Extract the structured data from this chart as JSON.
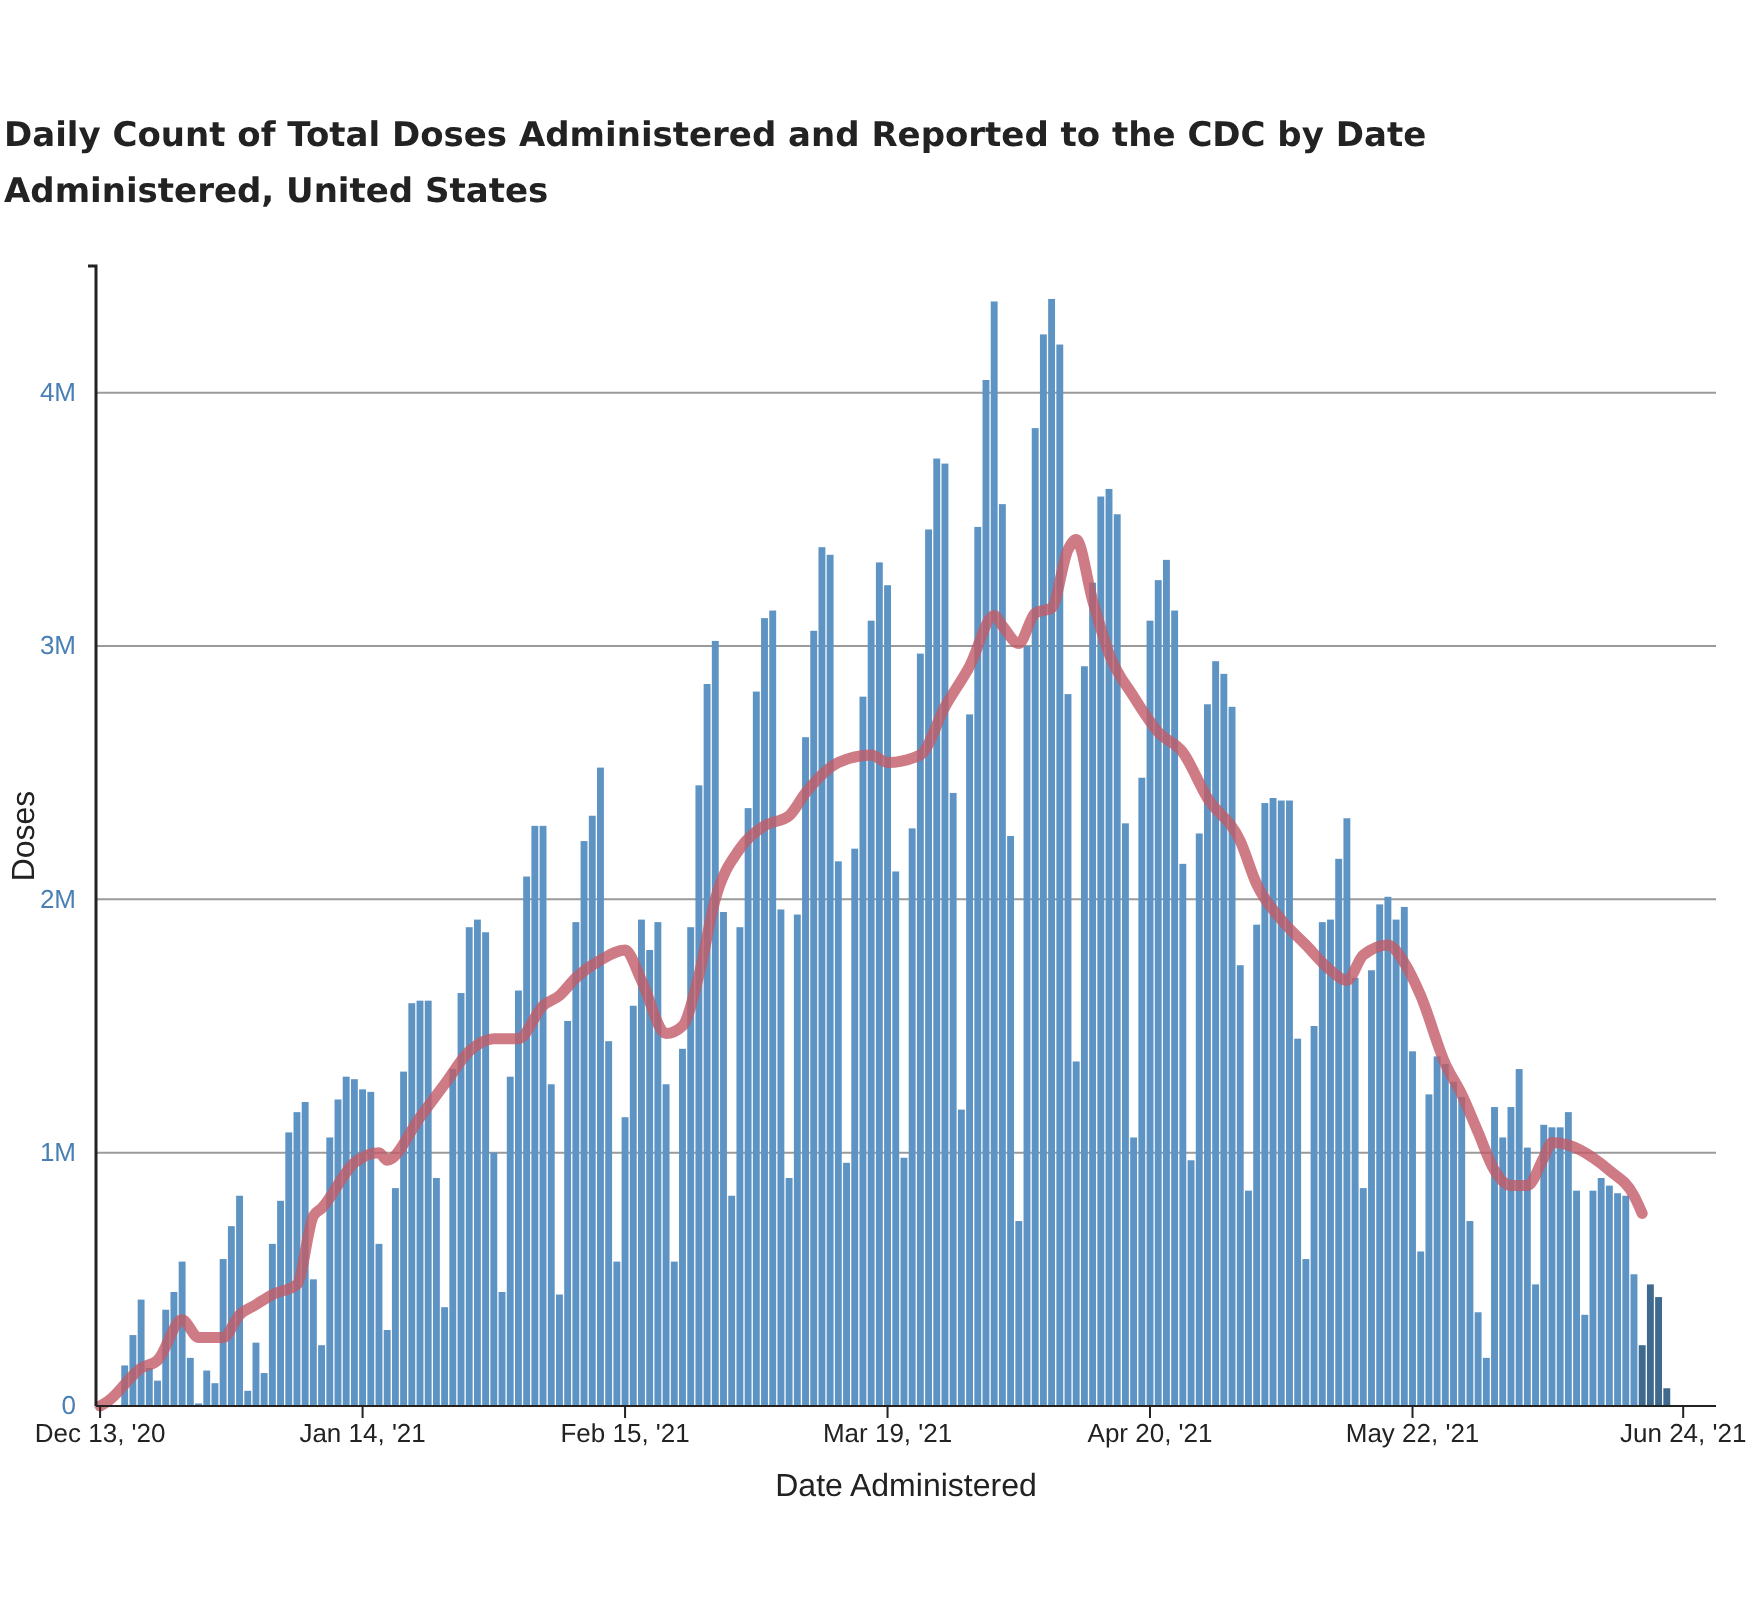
{
  "chart_data": {
    "type": "bar",
    "title": "Daily Count of Total Doses Administered and Reported to the CDC by Date Administered, United States",
    "xlabel": "Date Administered",
    "ylabel": "Doses",
    "grid": "y",
    "xlim": [
      "2020-12-12T12:00",
      "2021-06-28"
    ],
    "xticks": [
      {
        "value": "2020-12-13",
        "label": "Dec 13, '20"
      },
      {
        "value": "2021-01-14",
        "label": "Jan 14, '21"
      },
      {
        "value": "2021-02-15",
        "label": "Feb 15, '21"
      },
      {
        "value": "2021-03-19",
        "label": "Mar 19, '21"
      },
      {
        "value": "2021-04-20",
        "label": "Apr 20, '21"
      },
      {
        "value": "2021-05-22",
        "label": "May 22, '21"
      },
      {
        "value": "2021-06-24",
        "label": "Jun 24, '21"
      }
    ],
    "ylim": [
      0,
      4.5
    ],
    "yticks": [
      0,
      {
        "value": 1,
        "label": "1M"
      },
      {
        "value": 2,
        "label": "2M"
      },
      {
        "value": 3,
        "label": "3M"
      },
      {
        "value": 4,
        "label": "4M"
      }
    ],
    "series": [
      {
        "color": "#5e94c4",
        "x": [
          "2020-12-16",
          "2020-12-17",
          "2020-12-18",
          "2020-12-19",
          "2020-12-20",
          "2020-12-21",
          "2020-12-22",
          "2020-12-23",
          "2020-12-24",
          "2020-12-25",
          "2020-12-26",
          "2020-12-27",
          "2020-12-28",
          "2020-12-29",
          "2020-12-30",
          "2020-12-31",
          "2021-01-01",
          "2021-01-02",
          "2021-01-03",
          "2021-01-04",
          "2021-01-05",
          "2021-01-06",
          "2021-01-07",
          "2021-01-08",
          "2021-01-09",
          "2021-01-10",
          "2021-01-11",
          "2021-01-12",
          "2021-01-13",
          "2021-01-14",
          "2021-01-15",
          "2021-01-16",
          "2021-01-17",
          "2021-01-18",
          "2021-01-19",
          "2021-01-20",
          "2021-01-21",
          "2021-01-22",
          "2021-01-23",
          "2021-01-24",
          "2021-01-25",
          "2021-01-26",
          "2021-01-27",
          "2021-01-28",
          "2021-01-29",
          "2021-01-30",
          "2021-01-31",
          "2021-02-01",
          "2021-02-02",
          "2021-02-03",
          "2021-02-04",
          "2021-02-05",
          "2021-02-06",
          "2021-02-07",
          "2021-02-08",
          "2021-02-09",
          "2021-02-10",
          "2021-02-11",
          "2021-02-12",
          "2021-02-13",
          "2021-02-14",
          "2021-02-15",
          "2021-02-16",
          "2021-02-17",
          "2021-02-18",
          "2021-02-19",
          "2021-02-20",
          "2021-02-21",
          "2021-02-22",
          "2021-02-23",
          "2021-02-24",
          "2021-02-25",
          "2021-02-26",
          "2021-02-27",
          "2021-02-28",
          "2021-03-01",
          "2021-03-02",
          "2021-03-03",
          "2021-03-04",
          "2021-03-05",
          "2021-03-06",
          "2021-03-07",
          "2021-03-08",
          "2021-03-09",
          "2021-03-10",
          "2021-03-11",
          "2021-03-12",
          "2021-03-13",
          "2021-03-14",
          "2021-03-15",
          "2021-03-16",
          "2021-03-17",
          "2021-03-18",
          "2021-03-19",
          "2021-03-20",
          "2021-03-21",
          "2021-03-22",
          "2021-03-23",
          "2021-03-24",
          "2021-03-25",
          "2021-03-26",
          "2021-03-27",
          "2021-03-28",
          "2021-03-29",
          "2021-03-30",
          "2021-03-31",
          "2021-04-01",
          "2021-04-02",
          "2021-04-03",
          "2021-04-04",
          "2021-04-05",
          "2021-04-06",
          "2021-04-07",
          "2021-04-08",
          "2021-04-09",
          "2021-04-10",
          "2021-04-11",
          "2021-04-12",
          "2021-04-13",
          "2021-04-14",
          "2021-04-15",
          "2021-04-16",
          "2021-04-17",
          "2021-04-18",
          "2021-04-19",
          "2021-04-20",
          "2021-04-21",
          "2021-04-22",
          "2021-04-23",
          "2021-04-24",
          "2021-04-25",
          "2021-04-26",
          "2021-04-27",
          "2021-04-28",
          "2021-04-29",
          "2021-04-30",
          "2021-05-01",
          "2021-05-02",
          "2021-05-03",
          "2021-05-04",
          "2021-05-05",
          "2021-05-06",
          "2021-05-07",
          "2021-05-08",
          "2021-05-09",
          "2021-05-10",
          "2021-05-11",
          "2021-05-12",
          "2021-05-13",
          "2021-05-14",
          "2021-05-15",
          "2021-05-16",
          "2021-05-17",
          "2021-05-18",
          "2021-05-19",
          "2021-05-20",
          "2021-05-21",
          "2021-05-22",
          "2021-05-23",
          "2021-05-24",
          "2021-05-25",
          "2021-05-26",
          "2021-05-27",
          "2021-05-28",
          "2021-05-29",
          "2021-05-30",
          "2021-05-31",
          "2021-06-01",
          "2021-06-02",
          "2021-06-03",
          "2021-06-04",
          "2021-06-05",
          "2021-06-06",
          "2021-06-07",
          "2021-06-08",
          "2021-06-09",
          "2021-06-10",
          "2021-06-11",
          "2021-06-12",
          "2021-06-13",
          "2021-06-14",
          "2021-06-15",
          "2021-06-16",
          "2021-06-17",
          "2021-06-18"
        ],
        "values": [
          0.16,
          0.28,
          0.42,
          0.15,
          0.1,
          0.38,
          0.45,
          0.57,
          0.19,
          0.01,
          0.14,
          0.09,
          0.58,
          0.71,
          0.83,
          0.06,
          0.25,
          0.13,
          0.64,
          0.81,
          1.08,
          1.16,
          1.2,
          0.5,
          0.24,
          1.06,
          1.21,
          1.3,
          1.29,
          1.25,
          1.24,
          0.64,
          0.3,
          0.86,
          1.32,
          1.59,
          1.6,
          1.6,
          0.9,
          0.39,
          1.33,
          1.63,
          1.89,
          1.92,
          1.87,
          1.0,
          0.45,
          1.3,
          1.64,
          2.09,
          2.29,
          2.29,
          1.27,
          0.44,
          1.52,
          1.91,
          2.23,
          2.33,
          2.52,
          1.44,
          0.57,
          1.14,
          1.58,
          1.92,
          1.8,
          1.91,
          1.27,
          0.57,
          1.41,
          1.89,
          2.45,
          2.85,
          3.02,
          1.95,
          0.83,
          1.89,
          2.36,
          2.82,
          3.11,
          3.14,
          1.96,
          0.9,
          1.94,
          2.64,
          3.06,
          3.39,
          3.36,
          2.15,
          0.96,
          2.2,
          2.8,
          3.1,
          3.33,
          3.24,
          2.11,
          0.98,
          2.28,
          2.97,
          3.46,
          3.74,
          3.72,
          2.42,
          1.17,
          2.73,
          3.47,
          4.05,
          4.36,
          3.56,
          2.25,
          0.73,
          3.0,
          3.86,
          4.23,
          4.37,
          4.19,
          2.81,
          1.36,
          2.92,
          3.25,
          3.59,
          3.62,
          3.52,
          2.3,
          1.06,
          2.48,
          3.1,
          3.26,
          3.34,
          3.14,
          2.14,
          0.97,
          2.26,
          2.77,
          2.94,
          2.89,
          2.76,
          1.74,
          0.85,
          1.9,
          2.38,
          2.4,
          2.39,
          2.39,
          1.45,
          0.58,
          1.5,
          1.91,
          1.92,
          2.16,
          2.32,
          1.69,
          0.86,
          1.72,
          1.98,
          2.01,
          1.92,
          1.97,
          1.4,
          0.61,
          1.23,
          1.38,
          1.35,
          1.28,
          1.22,
          0.73,
          0.37,
          0.19,
          1.18,
          1.06,
          1.18,
          1.33,
          1.02,
          0.48,
          1.11,
          1.1,
          1.1,
          1.16,
          0.85,
          0.36,
          0.85,
          0.9,
          0.87,
          0.84,
          0.83,
          0.52
        ]
      },
      {
        "color": "#3f6a8e",
        "x": [
          "2021-06-19",
          "2021-06-20",
          "2021-06-21",
          "2021-06-22"
        ],
        "values": [
          0.24,
          0.48,
          0.43,
          0.07
        ]
      },
      {
        "type": "line",
        "color": "#c25a66",
        "x": [
          "2020-12-13",
          "2020-12-14",
          "2020-12-18",
          "2020-12-20",
          "2020-12-23",
          "2020-12-25",
          "2020-12-28",
          "2020-12-30",
          "2021-01-01",
          "2021-01-03",
          "2021-01-06",
          "2021-01-08",
          "2021-01-09",
          "2021-01-13",
          "2021-01-16",
          "2021-01-17",
          "2021-01-21",
          "2021-01-24",
          "2021-01-27",
          "2021-01-30",
          "2021-02-02",
          "2021-02-05",
          "2021-02-07",
          "2021-02-09",
          "2021-02-12",
          "2021-02-15",
          "2021-02-17",
          "2021-02-20",
          "2021-02-22",
          "2021-02-24",
          "2021-02-26",
          "2021-03-01",
          "2021-03-04",
          "2021-03-07",
          "2021-03-09",
          "2021-03-13",
          "2021-03-17",
          "2021-03-19",
          "2021-03-23",
          "2021-03-26",
          "2021-03-29",
          "2021-04-01",
          "2021-04-02",
          "2021-04-04",
          "2021-04-06",
          "2021-04-08",
          "2021-04-10",
          "2021-04-11",
          "2021-04-13",
          "2021-04-15",
          "2021-04-18",
          "2021-04-21",
          "2021-04-24",
          "2021-04-27",
          "2021-05-01",
          "2021-05-03",
          "2021-05-06",
          "2021-05-09",
          "2021-05-12",
          "2021-05-14",
          "2021-05-16",
          "2021-05-19",
          "2021-05-21",
          "2021-05-23",
          "2021-05-26",
          "2021-05-28",
          "2021-05-30",
          "2021-06-01",
          "2021-06-03",
          "2021-06-05",
          "2021-06-07",
          "2021-06-08",
          "2021-06-10",
          "2021-06-13",
          "2021-06-15",
          "2021-06-18",
          "2021-06-19"
        ],
        "values": [
          0,
          0.02,
          0.15,
          0.18,
          0.34,
          0.27,
          0.27,
          0.36,
          0.4,
          0.44,
          0.48,
          0.75,
          0.78,
          0.96,
          1.0,
          0.97,
          1.14,
          1.27,
          1.4,
          1.45,
          1.45,
          1.58,
          1.62,
          1.69,
          1.76,
          1.8,
          1.68,
          1.47,
          1.5,
          1.7,
          2.0,
          2.2,
          2.29,
          2.33,
          2.42,
          2.54,
          2.57,
          2.54,
          2.57,
          2.76,
          2.92,
          3.12,
          3.08,
          3.01,
          3.13,
          3.15,
          3.38,
          3.42,
          3.18,
          2.97,
          2.8,
          2.66,
          2.58,
          2.4,
          2.23,
          2.06,
          1.92,
          1.82,
          1.72,
          1.68,
          1.78,
          1.82,
          1.75,
          1.62,
          1.35,
          1.23,
          1.08,
          0.93,
          0.87,
          0.87,
          0.98,
          1.04,
          1.03,
          0.98,
          0.93,
          0.83,
          0.76
        ]
      }
    ]
  }
}
